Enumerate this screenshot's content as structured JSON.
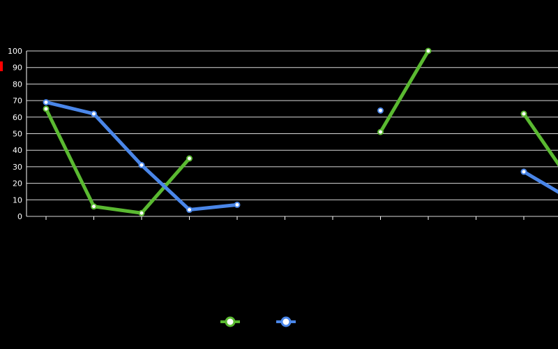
{
  "chart_data": {
    "type": "line",
    "title": "",
    "xlabel": "",
    "ylabel": "",
    "ylim": [
      0,
      100
    ],
    "yticks": [
      0,
      10,
      20,
      30,
      40,
      50,
      60,
      70,
      80,
      90,
      100
    ],
    "grid": true,
    "legend_position": "bottom",
    "categories": [
      "",
      "",
      "",
      "",
      "",
      "",
      "",
      "",
      "",
      "",
      "",
      ""
    ],
    "series": [
      {
        "name": "",
        "color": "#5ab931",
        "values": [
          65,
          6,
          2,
          35,
          null,
          null,
          null,
          51,
          100,
          null,
          62,
          20
        ]
      },
      {
        "name": "",
        "color": "#4a86e8",
        "values": [
          69,
          62,
          31,
          4,
          7,
          null,
          null,
          64,
          null,
          null,
          27,
          10
        ]
      }
    ],
    "data_labels": [
      {
        "series": 0,
        "index": 1,
        "text": ""
      },
      {
        "series": 0,
        "index": 7,
        "text": ""
      },
      {
        "series": 0,
        "index": 8,
        "text": ""
      },
      {
        "series": 0,
        "index": 10,
        "text": ""
      }
    ],
    "footer": ""
  }
}
